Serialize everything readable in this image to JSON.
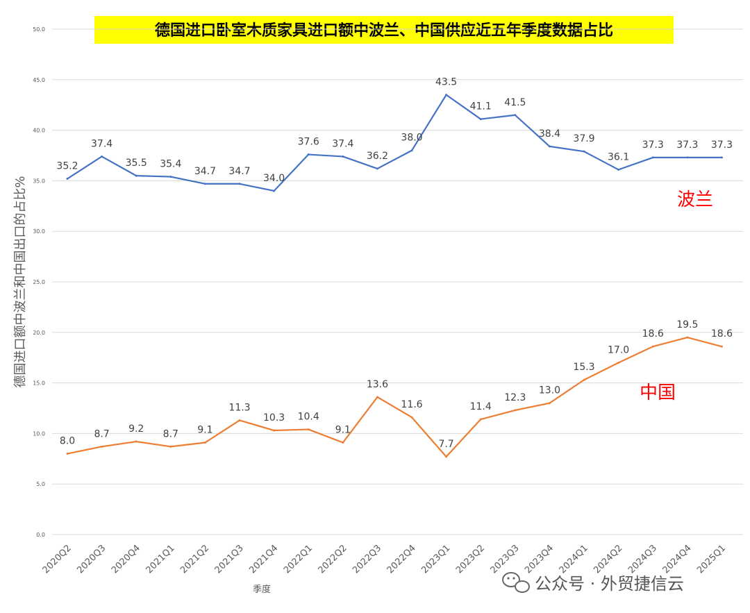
{
  "chart_data": {
    "type": "line",
    "title": "德国进口卧室木质家具进口额中波兰、中国供应近五年季度数据占比",
    "xlabel": "季度",
    "ylabel": "德国进口额中波兰和中国出口的占比%",
    "ylim": [
      0,
      50
    ],
    "yticks": [
      "0.0",
      "5.0",
      "10.0",
      "15.0",
      "20.0",
      "25.0",
      "30.0",
      "35.0",
      "40.0",
      "45.0",
      "50.0"
    ],
    "grid": true,
    "categories": [
      "2020Q2",
      "2020Q3",
      "2020Q4",
      "2021Q1",
      "2021Q2",
      "2021Q3",
      "2021Q4",
      "2022Q1",
      "2022Q2",
      "2022Q3",
      "2022Q4",
      "2023Q1",
      "2023Q2",
      "2023Q3",
      "2023Q4",
      "2024Q1",
      "2024Q2",
      "2024Q3",
      "2024Q4",
      "2025Q1"
    ],
    "series": [
      {
        "name": "波兰",
        "color": "#4472c4",
        "values": [
          35.2,
          37.4,
          35.5,
          35.4,
          34.7,
          34.7,
          34.0,
          37.6,
          37.4,
          36.2,
          38.0,
          43.5,
          41.1,
          41.5,
          38.4,
          37.9,
          36.1,
          37.3,
          37.3,
          37.3
        ],
        "labels": [
          "35.2",
          "37.4",
          "35.5",
          "35.4",
          "34.7",
          "34.7",
          "34.0",
          "37.6",
          "37.4",
          "36.2",
          "38.0",
          "43.5",
          "41.1",
          "41.5",
          "38.4",
          "37.9",
          "36.1",
          "37.3",
          "37.3",
          "37.3"
        ]
      },
      {
        "name": "中国",
        "color": "#ed7d31",
        "values": [
          8.0,
          8.7,
          9.2,
          8.7,
          9.1,
          11.3,
          10.3,
          10.4,
          9.1,
          13.6,
          11.6,
          7.7,
          11.4,
          12.3,
          13.0,
          15.3,
          17.0,
          18.6,
          19.5,
          18.6
        ],
        "labels": [
          "8.0",
          "8.7",
          "9.2",
          "8.7",
          "9.1",
          "11.3",
          "10.3",
          "10.4",
          "9.1",
          "13.6",
          "11.6",
          "7.7",
          "11.4",
          "12.3",
          "13.0",
          "15.3",
          "17.0",
          "18.6",
          "19.5",
          "18.6"
        ]
      }
    ],
    "series_name_color": "#ff0000",
    "title_highlight": "#ffff00"
  },
  "watermark": {
    "text": "公众号 · 外贸捷信云",
    "icon": "wechat-icon"
  }
}
